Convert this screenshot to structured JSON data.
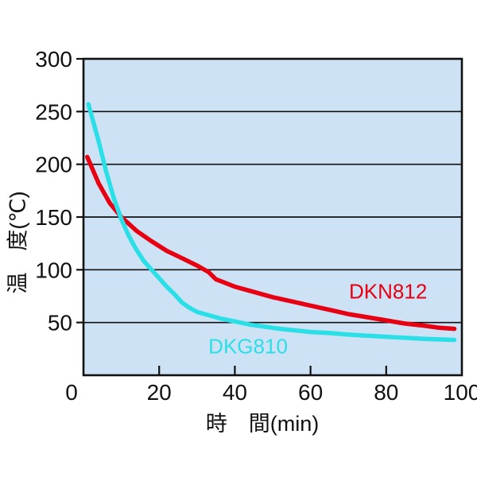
{
  "page": {
    "background": "#ffffff"
  },
  "chart_data": {
    "type": "line",
    "title": "",
    "xlabel": "時　間(min)",
    "ylabel": "温　度(℃)",
    "xlim": [
      0,
      100
    ],
    "ylim": [
      0,
      300
    ],
    "xticks": [
      0,
      20,
      40,
      60,
      80,
      100
    ],
    "yticks": [
      50,
      100,
      150,
      200,
      250,
      300
    ],
    "grid": "horizontal",
    "legend_position": "inline-labels",
    "plot_bg": "#cee2f6",
    "axis_color": "#111111",
    "series": [
      {
        "name": "DKN812",
        "color": "#e60012",
        "label_at": {
          "x": 80.5,
          "y": 79
        },
        "points": [
          [
            1,
            207
          ],
          [
            4,
            182
          ],
          [
            7,
            163
          ],
          [
            10,
            150
          ],
          [
            14,
            137
          ],
          [
            18,
            127
          ],
          [
            22,
            118
          ],
          [
            26,
            111
          ],
          [
            30,
            104
          ],
          [
            33,
            98
          ],
          [
            35,
            91
          ],
          [
            40,
            84
          ],
          [
            45,
            79
          ],
          [
            50,
            74
          ],
          [
            55,
            70
          ],
          [
            60,
            66
          ],
          [
            65,
            62
          ],
          [
            70,
            58
          ],
          [
            75,
            55
          ],
          [
            80,
            52
          ],
          [
            85,
            49
          ],
          [
            90,
            47
          ],
          [
            94,
            45
          ],
          [
            98,
            44
          ]
        ]
      },
      {
        "name": "DKG810",
        "color": "#2bdfe6",
        "label_at": {
          "x": 43.5,
          "y": 27
        },
        "points": [
          [
            1.3,
            257
          ],
          [
            4,
            222
          ],
          [
            6,
            193
          ],
          [
            8,
            168
          ],
          [
            10,
            148
          ],
          [
            12,
            132
          ],
          [
            14,
            119
          ],
          [
            16,
            108
          ],
          [
            18,
            100
          ],
          [
            20,
            92
          ],
          [
            22,
            84
          ],
          [
            24,
            77
          ],
          [
            26,
            69
          ],
          [
            28,
            64
          ],
          [
            30,
            60
          ],
          [
            33,
            57
          ],
          [
            36,
            54
          ],
          [
            40,
            51
          ],
          [
            44,
            48
          ],
          [
            48,
            46
          ],
          [
            52,
            44
          ],
          [
            56,
            42.5
          ],
          [
            60,
            41
          ],
          [
            65,
            40
          ],
          [
            70,
            38.5
          ],
          [
            75,
            37.5
          ],
          [
            80,
            36.5
          ],
          [
            85,
            35.5
          ],
          [
            90,
            34.5
          ],
          [
            94,
            34
          ],
          [
            98,
            33.5
          ]
        ]
      }
    ]
  }
}
